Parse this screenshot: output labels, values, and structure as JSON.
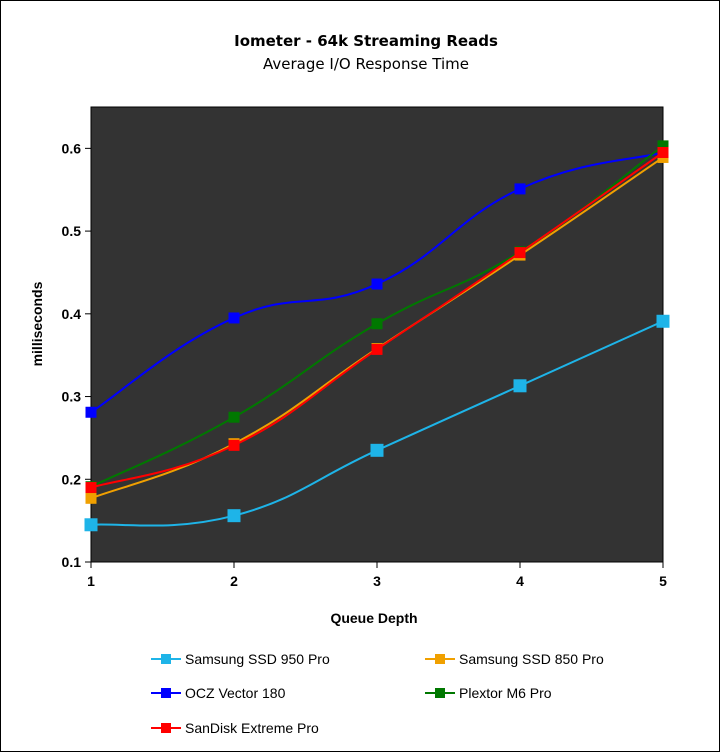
{
  "chart_data": {
    "type": "line",
    "title": "Iometer - 64k Streaming Reads",
    "subtitle": "Average I/O Response Time",
    "xlabel": "Queue Depth",
    "ylabel": "milliseconds",
    "x": [
      1,
      2,
      3,
      4,
      5
    ],
    "xticks": [
      "1",
      "2",
      "3",
      "4",
      "5"
    ],
    "ylim": [
      0.1,
      0.65
    ],
    "yticks": [
      0.1,
      0.2,
      0.3,
      0.4,
      0.5,
      0.6
    ],
    "ytick_labels": [
      "0.1",
      "0.2",
      "0.3",
      "0.4",
      "0.5",
      "0.6"
    ],
    "grid": false,
    "plot_background": "#333333",
    "legend_position": "bottom",
    "series": [
      {
        "name": "Samsung SSD 950 Pro",
        "color": "#1eb4e8",
        "values": [
          0.145,
          0.156,
          0.235,
          0.313,
          0.391
        ]
      },
      {
        "name": "Samsung SSD 850 Pro",
        "color": "#f0a000",
        "values": [
          0.177,
          0.243,
          0.358,
          0.471,
          0.589
        ]
      },
      {
        "name": "OCZ Vector 180",
        "color": "#0000ff",
        "values": [
          0.281,
          0.395,
          0.436,
          0.551,
          0.595
        ]
      },
      {
        "name": "Plextor M6 Pro",
        "color": "#007800",
        "values": [
          0.191,
          0.275,
          0.388,
          0.475,
          0.603
        ]
      },
      {
        "name": "SanDisk Extreme Pro",
        "color": "#ff0000",
        "values": [
          0.19,
          0.241,
          0.357,
          0.474,
          0.595
        ]
      }
    ]
  }
}
